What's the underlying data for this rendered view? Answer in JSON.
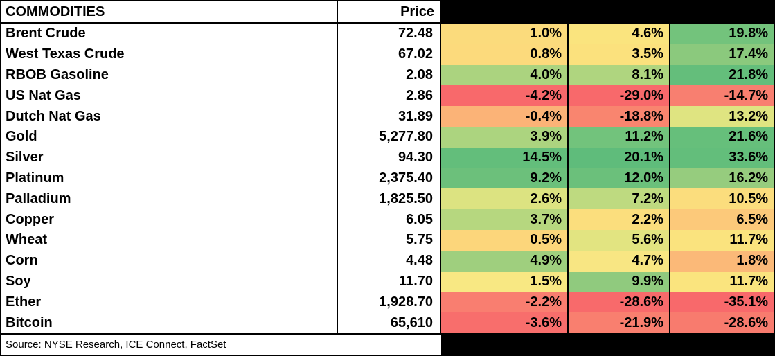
{
  "table": {
    "title": "COMMODITIES",
    "price_header": "Price",
    "hidden_change_headers": [
      "",
      "",
      ""
    ],
    "rows": [
      {
        "name": "Brent Crude",
        "price": "72.48",
        "changes": [
          {
            "value": "1.0%",
            "bg": "#FBDB7C"
          },
          {
            "value": "4.6%",
            "bg": "#FAE47E"
          },
          {
            "value": "19.8%",
            "bg": "#73C37C"
          }
        ]
      },
      {
        "name": "West Texas Crude",
        "price": "67.02",
        "changes": [
          {
            "value": "0.8%",
            "bg": "#FCDA7C"
          },
          {
            "value": "3.5%",
            "bg": "#FBE17D"
          },
          {
            "value": "17.4%",
            "bg": "#8BC97D"
          }
        ]
      },
      {
        "name": "RBOB Gasoline",
        "price": "2.08",
        "changes": [
          {
            "value": "4.0%",
            "bg": "#ABD37F"
          },
          {
            "value": "8.1%",
            "bg": "#AFD57F"
          },
          {
            "value": "21.8%",
            "bg": "#64BE7B"
          }
        ]
      },
      {
        "name": "US Nat Gas",
        "price": "2.86",
        "changes": [
          {
            "value": "-4.2%",
            "bg": "#F8696B"
          },
          {
            "value": "-29.0%",
            "bg": "#F8696B"
          },
          {
            "value": "-14.7%",
            "bg": "#F87F70"
          }
        ]
      },
      {
        "name": "Dutch Nat Gas",
        "price": "31.89",
        "changes": [
          {
            "value": "-0.4%",
            "bg": "#FBB377"
          },
          {
            "value": "-18.8%",
            "bg": "#F9856F"
          },
          {
            "value": "13.2%",
            "bg": "#DFE481"
          }
        ]
      },
      {
        "name": "Gold",
        "price": "5,277.80",
        "changes": [
          {
            "value": "3.9%",
            "bg": "#ACD47F"
          },
          {
            "value": "11.2%",
            "bg": "#72C37C"
          },
          {
            "value": "21.6%",
            "bg": "#66BF7B"
          }
        ]
      },
      {
        "name": "Silver",
        "price": "94.30",
        "changes": [
          {
            "value": "14.5%",
            "bg": "#63BE7B"
          },
          {
            "value": "20.1%",
            "bg": "#5FBC7B"
          },
          {
            "value": "33.6%",
            "bg": "#63BE7B"
          }
        ]
      },
      {
        "name": "Platinum",
        "price": "2,375.40",
        "changes": [
          {
            "value": "9.2%",
            "bg": "#6CC07B"
          },
          {
            "value": "12.0%",
            "bg": "#6BC07B"
          },
          {
            "value": "16.2%",
            "bg": "#96CC7E"
          }
        ]
      },
      {
        "name": "Palladium",
        "price": "1,825.50",
        "changes": [
          {
            "value": "2.6%",
            "bg": "#DCE381"
          },
          {
            "value": "7.2%",
            "bg": "#BEDA80"
          },
          {
            "value": "10.5%",
            "bg": "#FBDD7D"
          }
        ]
      },
      {
        "name": "Copper",
        "price": "6.05",
        "changes": [
          {
            "value": "3.7%",
            "bg": "#B6D77F"
          },
          {
            "value": "2.2%",
            "bg": "#FBDE7D"
          },
          {
            "value": "6.5%",
            "bg": "#FCC97A"
          }
        ]
      },
      {
        "name": "Wheat",
        "price": "5.75",
        "changes": [
          {
            "value": "0.5%",
            "bg": "#FCD67B"
          },
          {
            "value": "5.6%",
            "bg": "#E2E481"
          },
          {
            "value": "11.7%",
            "bg": "#FAE37E"
          }
        ]
      },
      {
        "name": "Corn",
        "price": "4.48",
        "changes": [
          {
            "value": "4.9%",
            "bg": "#9FCF7E"
          },
          {
            "value": "4.7%",
            "bg": "#F8E683"
          },
          {
            "value": "1.8%",
            "bg": "#FBB978"
          }
        ]
      },
      {
        "name": "Soy",
        "price": "11.70",
        "changes": [
          {
            "value": "1.5%",
            "bg": "#F8E883"
          },
          {
            "value": "9.9%",
            "bg": "#90CA7E"
          },
          {
            "value": "11.7%",
            "bg": "#FAE47E"
          }
        ]
      },
      {
        "name": "Ether",
        "price": "1,928.70",
        "changes": [
          {
            "value": "-2.2%",
            "bg": "#F97E70"
          },
          {
            "value": "-28.6%",
            "bg": "#F86A6B"
          },
          {
            "value": "-35.1%",
            "bg": "#F8696B"
          }
        ]
      },
      {
        "name": "Bitcoin",
        "price": "65,610",
        "changes": [
          {
            "value": "-3.6%",
            "bg": "#F86E6C"
          },
          {
            "value": "-21.9%",
            "bg": "#F97F6F"
          },
          {
            "value": "-28.6%",
            "bg": "#F87B6E"
          }
        ]
      }
    ],
    "source_note": "Source: NYSE Research, ICE Connect, FactSet"
  },
  "colors": {
    "border": "#000000",
    "hidden_header_bg": "#000000",
    "cell_bg": "#FFFFFF",
    "text": "#000000",
    "heatmap_min": "#F8696B",
    "heatmap_mid": "#FFEB84",
    "heatmap_max": "#63BE7B"
  }
}
